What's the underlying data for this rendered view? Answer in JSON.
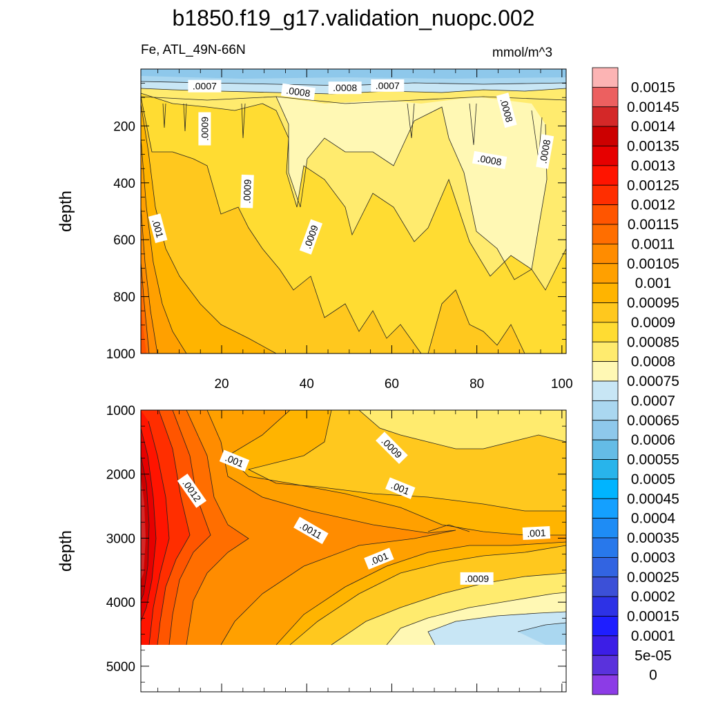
{
  "title": "b1850.f19_g17.validation_nuopc.002",
  "variable_label": "Fe, ATL_49N-66N",
  "units": "mmol/m^3",
  "colors": {
    "frame": "#000000",
    "contour_line": "#222222",
    "no_data": "#ffffff"
  },
  "chart_data": [
    {
      "type": "heatmap",
      "name": "upper-panel",
      "xlabel": "",
      "ylabel": "depth",
      "xlim": [
        1,
        101
      ],
      "ylim": [
        1000,
        0
      ],
      "x_ticks": [
        20,
        40,
        60,
        80,
        100
      ],
      "y_ticks": [
        200,
        400,
        600,
        800,
        1000
      ],
      "contour_labels": [
        {
          "text": ".0007",
          "x": 16,
          "y": 60,
          "angle": 0
        },
        {
          "text": ".0008",
          "x": 38,
          "y": 80,
          "angle": 8
        },
        {
          "text": ".0008",
          "x": 49,
          "y": 66,
          "angle": 0
        },
        {
          "text": ".0007",
          "x": 59,
          "y": 58,
          "angle": 0
        },
        {
          "text": ".0008",
          "x": 87,
          "y": 145,
          "angle": 75
        },
        {
          "text": ".0009",
          "x": 16,
          "y": 210,
          "angle": -90
        },
        {
          "text": ".0008",
          "x": 83,
          "y": 320,
          "angle": 10
        },
        {
          "text": ".0008",
          "x": 96,
          "y": 290,
          "angle": -80
        },
        {
          "text": ".0009",
          "x": 26,
          "y": 430,
          "angle": -88
        },
        {
          "text": ".001",
          "x": 5,
          "y": 560,
          "angle": 75
        },
        {
          "text": ".0009",
          "x": 41,
          "y": 590,
          "angle": -70
        }
      ]
    },
    {
      "type": "heatmap",
      "name": "lower-panel",
      "xlabel": "",
      "ylabel": "depth",
      "xlim": [
        1,
        101
      ],
      "ylim": [
        5400,
        1000
      ],
      "x_ticks": [
        20,
        40,
        60,
        80,
        100
      ],
      "y_ticks": [
        1000,
        2000,
        3000,
        4000,
        5000
      ],
      "contour_labels": [
        {
          "text": ".001",
          "x": 23,
          "y": 1790,
          "angle": 22
        },
        {
          "text": ".0009",
          "x": 60,
          "y": 1590,
          "angle": 45
        },
        {
          "text": ".0012",
          "x": 13,
          "y": 2260,
          "angle": 55
        },
        {
          "text": ".001",
          "x": 62,
          "y": 2220,
          "angle": 22
        },
        {
          "text": ".0011",
          "x": 41,
          "y": 2880,
          "angle": 30
        },
        {
          "text": ".001",
          "x": 57,
          "y": 3320,
          "angle": -22
        },
        {
          "text": ".001",
          "x": 94,
          "y": 2920,
          "angle": -3
        },
        {
          "text": ".0009",
          "x": 80,
          "y": 3630,
          "angle": 0
        }
      ],
      "data_bottom_depth": 4620
    }
  ],
  "colorbar": {
    "labels": [
      "0.0015",
      "0.00145",
      "0.0014",
      "0.00135",
      "0.0013",
      "0.00125",
      "0.0012",
      "0.00115",
      "0.0011",
      "0.00105",
      "0.001",
      "0.00095",
      "0.0009",
      "0.00085",
      "0.0008",
      "0.00075",
      "0.0007",
      "0.00065",
      "0.0006",
      "0.00055",
      "0.0005",
      "0.00045",
      "0.0004",
      "0.00035",
      "0.0003",
      "0.00025",
      "0.0002",
      "0.00015",
      "0.0001",
      "5e-05",
      "0"
    ],
    "box_colors": [
      "#fcb4b4",
      "#ec6060",
      "#d42828",
      "#cc0000",
      "#e60000",
      "#ff1400",
      "#ff2e00",
      "#ff5500",
      "#ff6e00",
      "#ff8c00",
      "#ffa000",
      "#ffb400",
      "#ffc81e",
      "#ffdc32",
      "#ffeb6e",
      "#fff8b4",
      "#c8e6f5",
      "#aad7f0",
      "#8ec8eb",
      "#64bce6",
      "#28b4eb",
      "#00b4ff",
      "#14a0ff",
      "#1e8cf5",
      "#2878eb",
      "#3264e1",
      "#3c50d7",
      "#2d32e6",
      "#1e1eff",
      "#3c1ee6",
      "#5a32dc",
      "#8c3ce6"
    ]
  }
}
